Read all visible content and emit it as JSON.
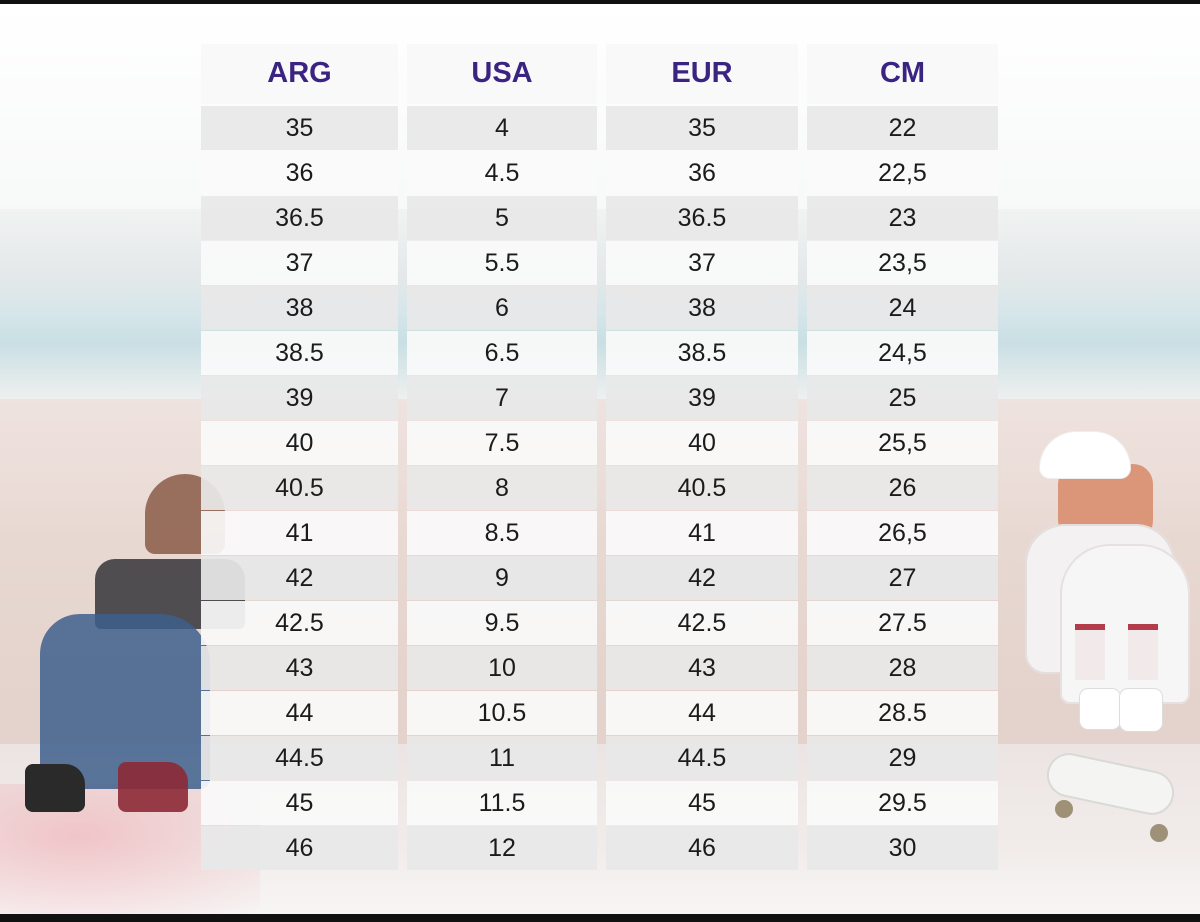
{
  "table": {
    "headers": [
      "ARG",
      "USA",
      "EUR",
      "CM"
    ],
    "rows": [
      [
        "35",
        "4",
        "35",
        "22"
      ],
      [
        "36",
        "4.5",
        "36",
        "22,5"
      ],
      [
        "36.5",
        "5",
        "36.5",
        "23"
      ],
      [
        "37",
        "5.5",
        "37",
        "23,5"
      ],
      [
        "38",
        "6",
        "38",
        "24"
      ],
      [
        "38.5",
        "6.5",
        "38.5",
        "24,5"
      ],
      [
        "39",
        "7",
        "39",
        "25"
      ],
      [
        "40",
        "7.5",
        "40",
        "25,5"
      ],
      [
        "40.5",
        "8",
        "40.5",
        "26"
      ],
      [
        "41",
        "8.5",
        "41",
        "26,5"
      ],
      [
        "42",
        "9",
        "42",
        "27"
      ],
      [
        "42.5",
        "9.5",
        "42.5",
        "27.5"
      ],
      [
        "43",
        "10",
        "43",
        "28"
      ],
      [
        "44",
        "10.5",
        "44",
        "28.5"
      ],
      [
        "44.5",
        "11",
        "44.5",
        "29"
      ],
      [
        "45",
        "11.5",
        "45",
        "29.5"
      ],
      [
        "46",
        "12",
        "46",
        "30"
      ]
    ]
  },
  "colors": {
    "header_text": "#3b2481",
    "cell_text": "#1b1b1b",
    "row_odd_bg": "#e8e8e8",
    "row_even_bg": "#fafafa"
  }
}
